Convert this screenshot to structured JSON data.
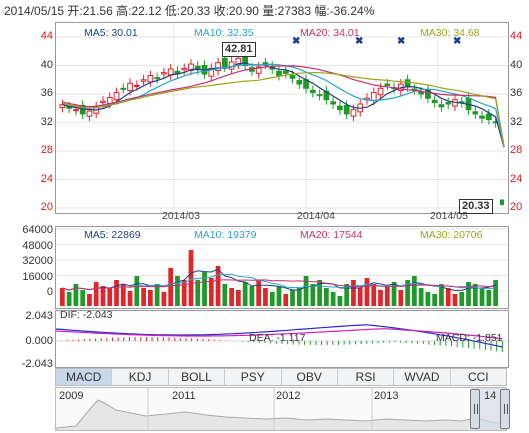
{
  "header": {
    "date": "2014/05/15",
    "open_label": "开:",
    "open": "21.56",
    "high_label": "高:",
    "high": "22.12",
    "low_label": "低:",
    "low": "20.33",
    "close_label": "收:",
    "close": "20.90",
    "vol_label": "量:",
    "vol": "27383",
    "chg_label": "幅:",
    "chg": "-36.24%"
  },
  "price_panel": {
    "ma": [
      {
        "label": "MA5: 30.01",
        "color": "#1f3f7f"
      },
      {
        "label": "MA10: 32.35",
        "color": "#2aa3c8"
      },
      {
        "label": "MA20: 34.01",
        "color": "#c8306f"
      },
      {
        "label": "MA30: 34.68",
        "color": "#9aa51a"
      }
    ],
    "y_ticks": [
      "44",
      "40",
      "36",
      "32",
      "28",
      "24",
      "20"
    ],
    "x_ticks": [
      "2014/03",
      "2014/04",
      "2014/05"
    ],
    "max_callout": "42.81",
    "min_callout": "20.33"
  },
  "volume_panel": {
    "ma": [
      {
        "label": "MA5: 22869",
        "color": "#1f3f7f"
      },
      {
        "label": "MA10: 19379",
        "color": "#2aa3c8"
      },
      {
        "label": "MA20: 17544",
        "color": "#c8306f"
      },
      {
        "label": "MA30: 20706",
        "color": "#9aa51a"
      }
    ],
    "y_ticks": [
      "64000",
      "48000",
      "32000",
      "16000",
      "0"
    ]
  },
  "macd_panel": {
    "dif": "DIF: -2.043",
    "dea": "DEA: -1.117",
    "macd": "MACD: -1.851",
    "y_ticks": [
      "2.043",
      "0.000",
      "-2.043"
    ]
  },
  "tabs": [
    "MACD",
    "KDJ",
    "BOLL",
    "PSY",
    "OBV",
    "RSI",
    "WVAD",
    "CCI"
  ],
  "navigator": {
    "years": [
      "2009",
      "2011",
      "2012",
      "2013",
      "14"
    ]
  },
  "colors": {
    "up": "#e0262b",
    "down": "#1f9a2a"
  }
}
